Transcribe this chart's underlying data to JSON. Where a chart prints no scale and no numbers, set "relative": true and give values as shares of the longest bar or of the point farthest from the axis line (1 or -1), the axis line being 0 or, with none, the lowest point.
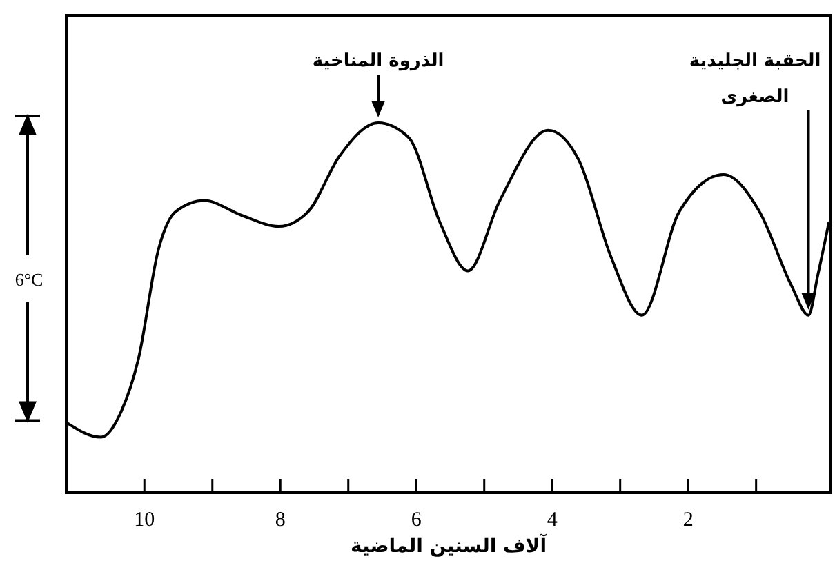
{
  "chart_data": {
    "type": "line",
    "relative": true,
    "xlabel": "آلاف السنين الماضية",
    "xlim": [
      11.15,
      -0.1
    ],
    "xticks": [
      10,
      {
        "value": 9,
        "label": null
      },
      8,
      {
        "value": 7,
        "label": null
      },
      6,
      {
        "value": 5,
        "label": null
      },
      4,
      {
        "value": 3,
        "label": null
      },
      2,
      {
        "value": 1,
        "label": null
      }
    ],
    "x": [
      11.15,
      10.64,
      10.34,
      10.09,
      9.79,
      9.54,
      9.12,
      8.57,
      8.02,
      7.59,
      7.13,
      6.56,
      6.11,
      5.65,
      5.24,
      4.77,
      4.06,
      3.61,
      3.14,
      2.68,
      2.13,
      1.48,
      0.95,
      0.48,
      0.23,
      0.09,
      -0.07
    ],
    "series": [
      {
        "color": "#000000",
        "values": [
          0.19,
          0.15,
          0.22,
          0.36,
          0.66,
          0.76,
          0.79,
          0.75,
          0.72,
          0.76,
          0.91,
          1.0,
          0.96,
          0.73,
          0.6,
          0.79,
          0.98,
          0.9,
          0.64,
          0.48,
          0.76,
          0.86,
          0.76,
          0.56,
          0.48,
          0.59,
          0.73
        ]
      }
    ],
    "annotations": [
      "6°C",
      {
        "text": "الذروة المناخية",
        "x": 6.56,
        "y": 1.0
      },
      "الحقبة الجليدية الصغرى"
    ],
    "grid": false,
    "legend": false
  }
}
